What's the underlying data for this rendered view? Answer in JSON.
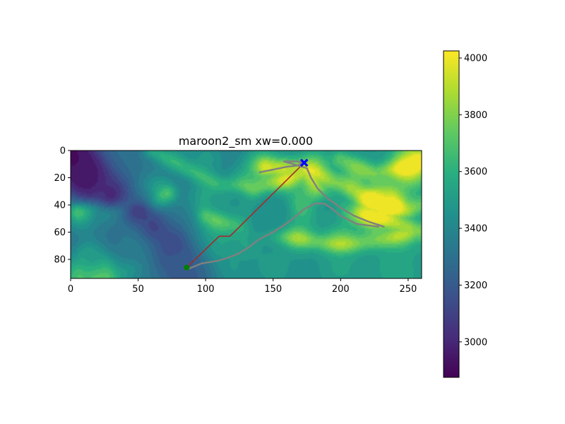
{
  "chart_data": {
    "type": "heatmap",
    "title": "maroon2_sm xw=0.000",
    "xlabel": "",
    "ylabel": "",
    "xlim": [
      0,
      260
    ],
    "ylim": [
      94,
      0
    ],
    "x_ticks": [
      0,
      50,
      100,
      150,
      200,
      250
    ],
    "y_ticks": [
      0,
      20,
      40,
      60,
      80
    ],
    "colorbar": {
      "colormap": "viridis",
      "range": [
        2875,
        4025
      ],
      "ticks": [
        3000,
        3200,
        3400,
        3600,
        3800,
        4000
      ]
    },
    "features": {
      "ridges": [
        [
          [
            145,
            12
          ],
          [
            160,
            12
          ],
          [
            175,
            14
          ],
          [
            200,
            26
          ],
          [
            218,
            34
          ],
          [
            232,
            42
          ],
          [
            250,
            44
          ],
          [
            260,
            40
          ]
        ],
        [
          [
            175,
            14
          ],
          [
            185,
            34
          ],
          [
            205,
            46
          ],
          [
            228,
            50
          ],
          [
            250,
            56
          ],
          [
            260,
            60
          ]
        ],
        [
          [
            60,
            0
          ],
          [
            75,
            8
          ],
          [
            95,
            18
          ],
          [
            112,
            26
          ],
          [
            135,
            30
          ],
          [
            160,
            22
          ],
          [
            175,
            14
          ]
        ],
        [
          [
            100,
            48
          ],
          [
            128,
            55
          ],
          [
            152,
            62
          ],
          [
            176,
            66
          ],
          [
            200,
            70
          ],
          [
            230,
            66
          ],
          [
            260,
            58
          ]
        ],
        [
          [
            200,
            6
          ],
          [
            225,
            16
          ],
          [
            250,
            12
          ],
          [
            260,
            8
          ]
        ],
        [
          [
            5,
            44
          ],
          [
            22,
            40
          ],
          [
            40,
            44
          ],
          [
            60,
            40
          ],
          [
            72,
            32
          ]
        ]
      ],
      "peaks": [
        [
          224,
          38,
          4020
        ],
        [
          237,
          38,
          3990
        ],
        [
          255,
          8,
          3940
        ],
        [
          250,
          14,
          3900
        ],
        [
          225,
          48,
          3850
        ],
        [
          158,
          20,
          3800
        ],
        [
          180,
          13,
          3790
        ],
        [
          185,
          30,
          3780
        ],
        [
          142,
          12,
          3760
        ],
        [
          172,
          41,
          3750
        ],
        [
          130,
          28,
          3740
        ],
        [
          210,
          22,
          3720
        ],
        [
          200,
          65,
          3730
        ],
        [
          168,
          62,
          3690
        ],
        [
          245,
          64,
          3700
        ],
        [
          25,
          87,
          3860
        ],
        [
          20,
          89,
          3800
        ],
        [
          8,
          92,
          3720
        ],
        [
          40,
          82,
          3560
        ],
        [
          15,
          78,
          3520
        ],
        [
          110,
          57,
          3650
        ],
        [
          125,
          48,
          3600
        ],
        [
          55,
          42,
          3600
        ],
        [
          30,
          44,
          3570
        ],
        [
          8,
          48,
          3540
        ],
        [
          65,
          30,
          3540
        ],
        [
          130,
          68,
          3560
        ],
        [
          110,
          70,
          3540
        ],
        [
          90,
          72,
          3480
        ],
        [
          100,
          35,
          3540
        ],
        [
          60,
          60,
          3480
        ],
        [
          120,
          85,
          3480
        ],
        [
          150,
          86,
          3520
        ],
        [
          200,
          86,
          3540
        ],
        [
          240,
          86,
          3560
        ],
        [
          260,
          80,
          3520
        ],
        [
          100,
          6,
          3500
        ],
        [
          80,
          2,
          3440
        ]
      ],
      "valleys": [
        [
          5,
          10,
          2880
        ],
        [
          2,
          2,
          2920
        ],
        [
          10,
          18,
          2920
        ],
        [
          15,
          22,
          2950
        ],
        [
          30,
          32,
          3000
        ],
        [
          50,
          46,
          3050
        ],
        [
          60,
          58,
          3080
        ],
        [
          75,
          70,
          3110
        ],
        [
          80,
          80,
          3150
        ],
        [
          82,
          90,
          3200
        ],
        [
          90,
          94,
          3220
        ],
        [
          35,
          65,
          3300
        ],
        [
          45,
          72,
          3340
        ],
        [
          150,
          45,
          3420
        ],
        [
          140,
          55,
          3450
        ],
        [
          122,
          38,
          3470
        ],
        [
          190,
          42,
          3470
        ]
      ]
    },
    "series": [
      {
        "kind": "straight-path",
        "color": "#a52a2a",
        "x": [
          86,
          110,
          118,
          173
        ],
        "y": [
          86,
          63,
          63,
          9
        ]
      },
      {
        "kind": "search-path",
        "color": "#808080",
        "x": [
          140,
          150,
          160,
          168,
          172,
          168,
          158,
          175,
          178,
          183,
          190,
          200,
          210,
          220,
          232
        ],
        "y": [
          16,
          14,
          12,
          11,
          9,
          8,
          8,
          13,
          20,
          28,
          35,
          42,
          48,
          52,
          56
        ]
      },
      {
        "kind": "search-path",
        "color": "#808080",
        "x": [
          87,
          92,
          97,
          103,
          109,
          116,
          124,
          132,
          140,
          150,
          158,
          166,
          173,
          181,
          188,
          194,
          200,
          212,
          228
        ],
        "y": [
          87,
          85,
          83,
          82,
          81,
          79,
          76,
          71,
          65,
          60,
          55,
          49,
          43,
          39,
          39,
          43,
          48,
          54,
          56
        ]
      }
    ],
    "markers": [
      {
        "kind": "start",
        "x": 86,
        "y": 86,
        "color": "#008000",
        "shape": "circle"
      },
      {
        "kind": "goal",
        "x": 173,
        "y": 9,
        "color": "#0000ff",
        "shape": "x"
      }
    ]
  }
}
